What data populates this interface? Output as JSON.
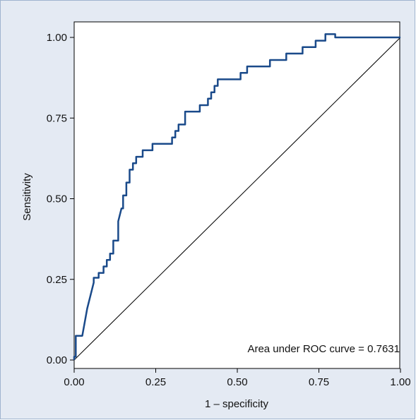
{
  "chart_data": {
    "type": "line",
    "title": "",
    "xlabel": "1 – specificity",
    "ylabel": "Sensitivity",
    "xlim": [
      0,
      1
    ],
    "ylim": [
      0,
      1
    ],
    "xticks": [
      "0.00",
      "0.25",
      "0.50",
      "0.75",
      "1.00"
    ],
    "yticks": [
      "0.00",
      "0.25",
      "0.50",
      "0.75",
      "1.00"
    ],
    "annotation": "Area under ROC curve = 0.7631",
    "grid": false,
    "colors": {
      "curve": "#1a4a8a",
      "reference": "#000000",
      "background": "#e4eaf3",
      "plot_area": "#ffffff"
    },
    "series": [
      {
        "x": [
          0,
          0,
          0.005,
          0.005,
          0.025,
          0.04,
          0.06,
          0.06,
          0.075,
          0.075,
          0.09,
          0.09,
          0.1,
          0.1,
          0.11,
          0.11,
          0.12,
          0.12,
          0.135,
          0.135,
          0.145,
          0.15,
          0.15,
          0.16,
          0.16,
          0.17,
          0.17,
          0.18,
          0.18,
          0.19,
          0.19,
          0.21,
          0.21,
          0.24,
          0.24,
          0.3,
          0.3,
          0.31,
          0.31,
          0.32,
          0.32,
          0.34,
          0.34,
          0.385,
          0.385,
          0.41,
          0.41,
          0.42,
          0.42,
          0.43,
          0.43,
          0.44,
          0.44,
          0.51,
          0.51,
          0.53,
          0.53,
          0.6,
          0.6,
          0.65,
          0.65,
          0.7,
          0.7,
          0.74,
          0.74,
          0.77,
          0.77,
          0.8,
          0.8,
          1.0
        ],
        "y": [
          0,
          0.01,
          0.01,
          0.075,
          0.075,
          0.16,
          0.24,
          0.255,
          0.255,
          0.27,
          0.27,
          0.29,
          0.29,
          0.31,
          0.31,
          0.33,
          0.33,
          0.37,
          0.37,
          0.43,
          0.47,
          0.47,
          0.51,
          0.51,
          0.55,
          0.55,
          0.59,
          0.59,
          0.61,
          0.61,
          0.63,
          0.63,
          0.65,
          0.65,
          0.67,
          0.67,
          0.69,
          0.69,
          0.71,
          0.71,
          0.73,
          0.73,
          0.77,
          0.77,
          0.79,
          0.79,
          0.81,
          0.81,
          0.83,
          0.83,
          0.85,
          0.85,
          0.87,
          0.87,
          0.89,
          0.89,
          0.91,
          0.91,
          0.93,
          0.93,
          0.95,
          0.95,
          0.97,
          0.97,
          0.99,
          0.99,
          1.01,
          1.01,
          1.0,
          1.0
        ]
      }
    ],
    "reference_line": {
      "x": [
        0,
        1
      ],
      "y": [
        0,
        1
      ]
    }
  }
}
